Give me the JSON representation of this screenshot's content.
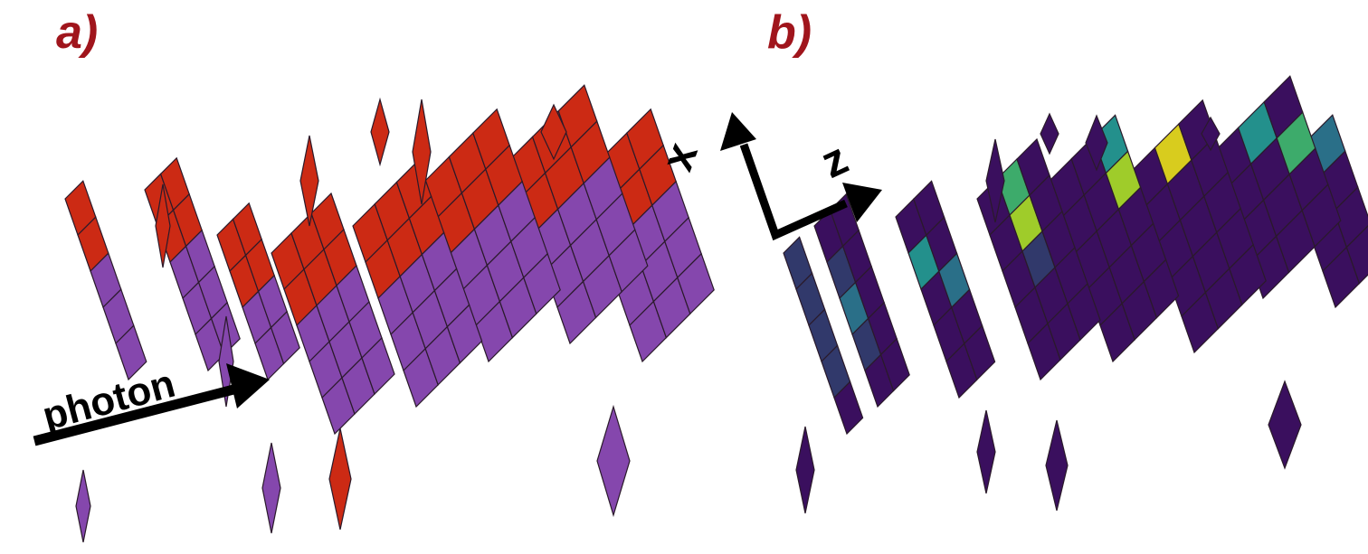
{
  "panels": {
    "a": {
      "label": "a)",
      "annotation": "photon"
    },
    "b": {
      "label": "b)",
      "axis_x": "x",
      "axis_z": "z"
    }
  },
  "colors": {
    "label": "#a0151c",
    "front_layer": "#cc2a14",
    "back_layer": "#8547ad",
    "outline": "#2a1a2a",
    "viridis": [
      "#3a0f5e",
      "#31396b",
      "#2a6f88",
      "#23908c",
      "#3dab6b",
      "#9fcc2a",
      "#d8cc1e"
    ]
  },
  "icons": {
    "arrow": "arrow-icon"
  }
}
